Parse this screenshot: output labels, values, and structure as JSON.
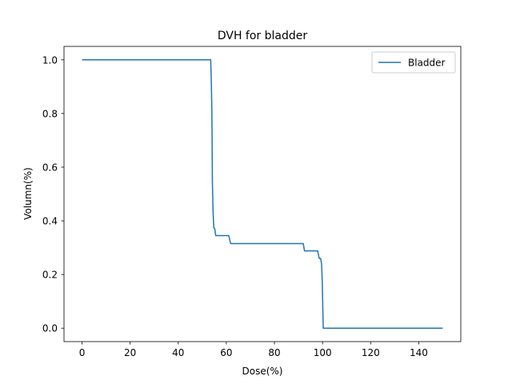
{
  "chart_data": {
    "type": "line",
    "title": "DVH for bladder",
    "xlabel": "Dose(%)",
    "ylabel": "Volumn(%)",
    "xlim": [
      -7.5,
      157.5
    ],
    "ylim": [
      -0.05,
      1.05
    ],
    "xticks": [
      0,
      20,
      40,
      60,
      80,
      100,
      120,
      140
    ],
    "yticks": [
      0.0,
      0.2,
      0.4,
      0.6,
      0.8,
      1.0
    ],
    "xtick_labels": [
      "0",
      "20",
      "40",
      "60",
      "80",
      "100",
      "120",
      "140"
    ],
    "ytick_labels": [
      "0.0",
      "0.2",
      "0.4",
      "0.6",
      "0.8",
      "1.0"
    ],
    "grid": false,
    "legend_position": "top-right",
    "series": [
      {
        "name": "Bladder",
        "color": "#1f77b4",
        "x": [
          0,
          53.5,
          53.8,
          54.0,
          54.2,
          54.5,
          54.8,
          55.2,
          55.6,
          61.0,
          61.8,
          92.0,
          92.5,
          98.0,
          98.6,
          99.2,
          99.6,
          99.9,
          100.3,
          150
        ],
        "y": [
          1.0,
          1.0,
          0.9,
          0.8,
          0.55,
          0.43,
          0.375,
          0.37,
          0.345,
          0.345,
          0.315,
          0.315,
          0.288,
          0.288,
          0.26,
          0.26,
          0.24,
          0.17,
          0.0,
          0.0
        ]
      }
    ]
  }
}
